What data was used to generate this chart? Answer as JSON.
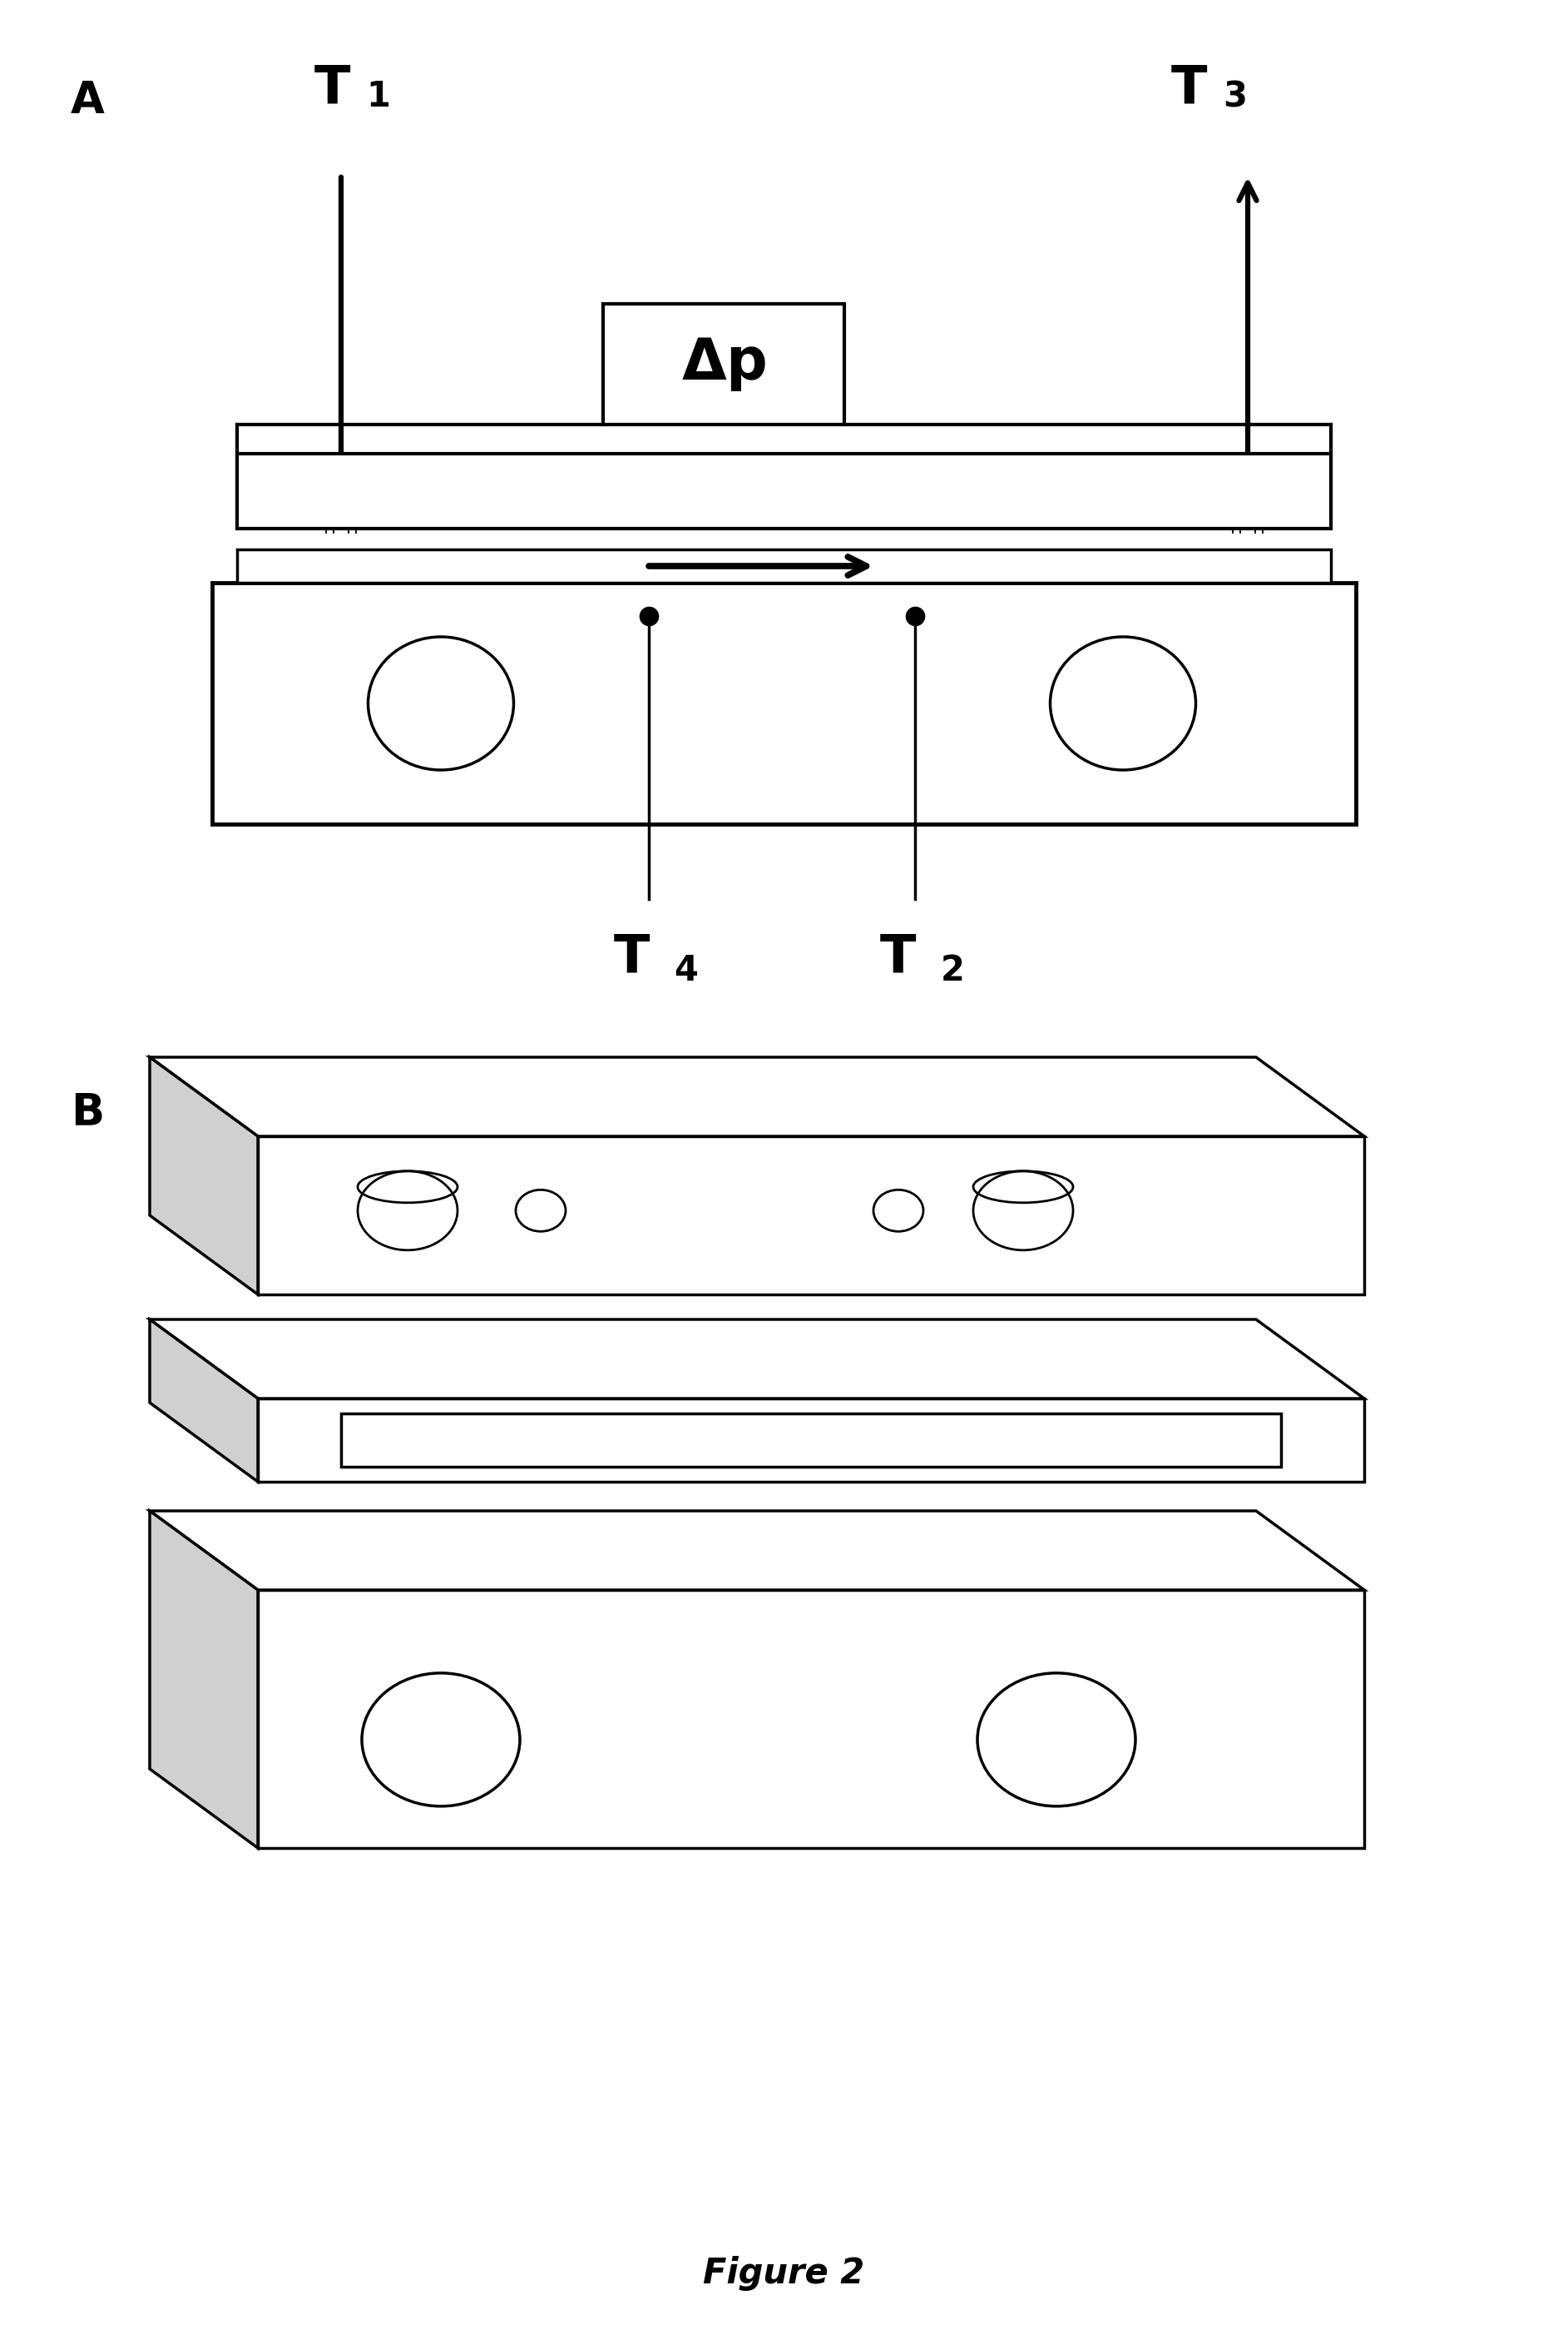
{
  "fig_width": 18.85,
  "fig_height": 27.93,
  "bg_color": "#ffffff",
  "label_A": "A",
  "label_B": "B",
  "delta_p": "Δp",
  "figure_caption": "Figure 2",
  "line_color": "#000000",
  "lw": 2.5
}
